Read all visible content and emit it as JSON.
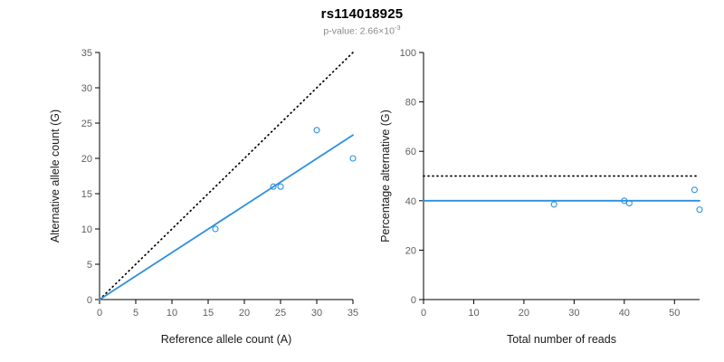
{
  "header": {
    "title": "rs114018925",
    "pvalue_base": "p-value: 2.66×10",
    "pvalue_exponent": "-3"
  },
  "colors": {
    "accent_blue": "#2b90e0",
    "dotted_black": "#000000",
    "axis": "#000000",
    "tick_label": "#606060",
    "axis_label": "#1a1a1a",
    "subtitle_gray": "#8a8a8a"
  },
  "chart_data": {
    "figure_title": "rs114018925",
    "figure_subtitle": "p-value: 2.66×10⁻³",
    "charts": [
      {
        "type": "scatter",
        "xlabel": "Reference allele count (A)",
        "ylabel": "Alternative allele count (G)",
        "xlim": [
          0,
          35
        ],
        "ylim": [
          0,
          35
        ],
        "xticks": [
          0,
          5,
          10,
          15,
          20,
          25,
          30,
          35
        ],
        "yticks": [
          0,
          5,
          10,
          15,
          20,
          25,
          30,
          35
        ],
        "grid": false,
        "legend": "none",
        "points": [
          [
            16,
            10
          ],
          [
            24,
            16
          ],
          [
            25,
            16
          ],
          [
            30,
            24
          ],
          [
            35,
            20
          ]
        ],
        "lines": [
          {
            "name": "identity-expected",
            "style": "dotted",
            "color": "#000000",
            "from": [
              0,
              0
            ],
            "to": [
              35,
              35
            ]
          },
          {
            "name": "fitted",
            "style": "solid",
            "color": "#2b90e0",
            "from": [
              0,
              0
            ],
            "to": [
              35,
              23.3
            ]
          }
        ]
      },
      {
        "type": "scatter",
        "xlabel": "Total number of reads",
        "ylabel": "Percentage alternative (G)",
        "xlim": [
          0,
          55
        ],
        "ylim": [
          0,
          100
        ],
        "xticks": [
          0,
          10,
          20,
          30,
          40,
          50
        ],
        "yticks": [
          0,
          20,
          40,
          60,
          80,
          100
        ],
        "grid": false,
        "legend": "none",
        "points": [
          [
            26,
            38.5
          ],
          [
            40,
            40
          ],
          [
            41,
            39
          ],
          [
            54,
            44.4
          ],
          [
            55,
            36.4
          ]
        ],
        "lines": [
          {
            "name": "expected-50pct",
            "style": "dotted",
            "color": "#000000",
            "from": [
              0,
              50
            ],
            "to": [
              55,
              50
            ]
          },
          {
            "name": "observed-mean",
            "style": "solid",
            "color": "#2b90e0",
            "from": [
              0,
              40
            ],
            "to": [
              55,
              40
            ]
          }
        ]
      }
    ]
  }
}
